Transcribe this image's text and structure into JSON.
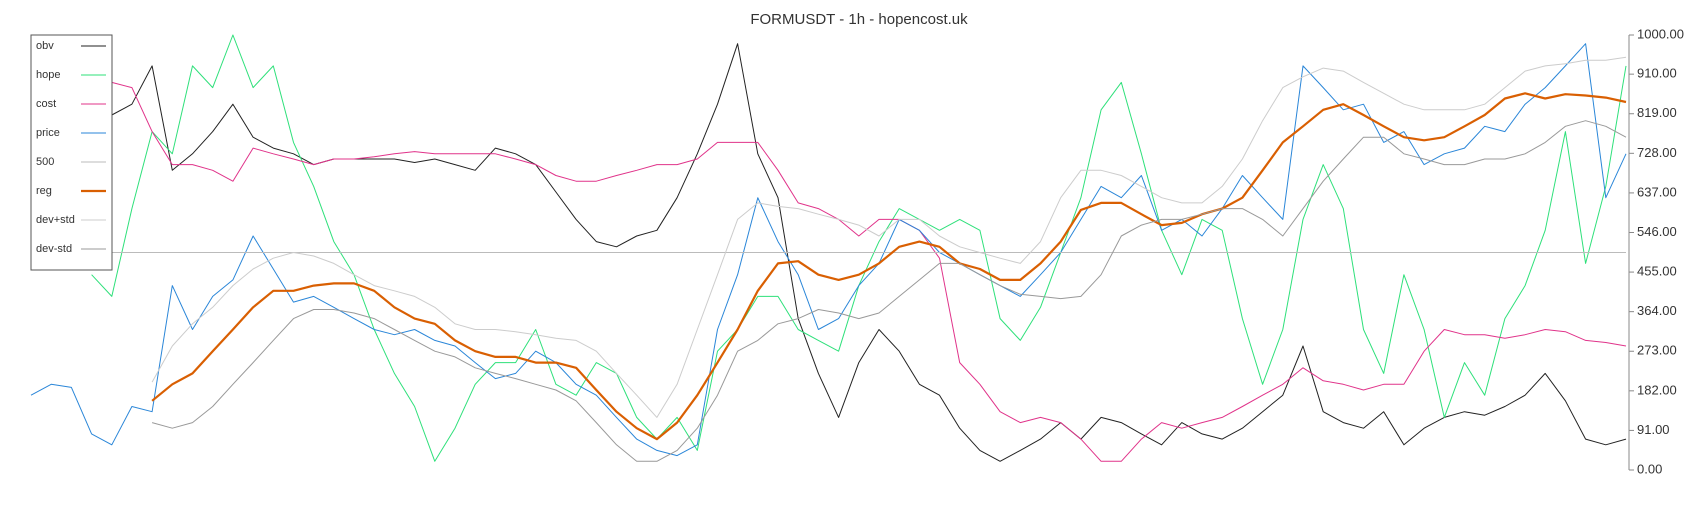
{
  "chart_data": {
    "type": "line",
    "title": "FORMUSDT - 1h - hopencost.uk",
    "categories": [
      null,
      null,
      null,
      null,
      null,
      null,
      null,
      null,
      null,
      null,
      null,
      null,
      null,
      null,
      null,
      null,
      null,
      null,
      null,
      null,
      null,
      null,
      null,
      null,
      null,
      null,
      null,
      null,
      null,
      null,
      null,
      null,
      null,
      null,
      null,
      null,
      null,
      null,
      null,
      null,
      null,
      null,
      null,
      null,
      null,
      null,
      null,
      null,
      null,
      null,
      null,
      null,
      null,
      null,
      null,
      null,
      null,
      null,
      null,
      null,
      null,
      null,
      null,
      null,
      null,
      null,
      null,
      null,
      null,
      null,
      null,
      null,
      null,
      null,
      null,
      null,
      null,
      null,
      null,
      null
    ],
    "ylim": [
      0,
      1000
    ],
    "yticks": [
      {
        "value": 0,
        "label": "0.00"
      },
      {
        "value": 91,
        "label": "91.00"
      },
      {
        "value": 182,
        "label": "182.00"
      },
      {
        "value": 273,
        "label": "273.00"
      },
      {
        "value": 364,
        "label": "364.00"
      },
      {
        "value": 455,
        "label": "455.00"
      },
      {
        "value": 546,
        "label": "546.00"
      },
      {
        "value": 637,
        "label": "637.00"
      },
      {
        "value": 728,
        "label": "728.00"
      },
      {
        "value": 819,
        "label": "819.00"
      },
      {
        "value": 910,
        "label": "910.00"
      },
      {
        "value": 1000,
        "label": "1000.00"
      }
    ],
    "grid": false,
    "legend": "upper left",
    "series": [
      {
        "name": "obv",
        "color": "#222222",
        "line_width": 1,
        "values": [
          null,
          null,
          null,
          null,
          816,
          841,
          929,
          689,
          727,
          778,
          841,
          765,
          740,
          727,
          702,
          715,
          715,
          715,
          715,
          707,
          715,
          702,
          689,
          740,
          727,
          702,
          639,
          576,
          525,
          513,
          538,
          551,
          626,
          727,
          841,
          980,
          727,
          626,
          348,
          222,
          121,
          247,
          323,
          273,
          197,
          172,
          96,
          45,
          20,
          45,
          71,
          109,
          71,
          121,
          109,
          83,
          58,
          109,
          83,
          71,
          96,
          134,
          172,
          285,
          134,
          109,
          96,
          134,
          58,
          96,
          121,
          134,
          126,
          146,
          172,
          222,
          159,
          71,
          58,
          71
        ]
      },
      {
        "name": "hope",
        "color": "#2ee07a",
        "line_width": 1,
        "values": [
          null,
          null,
          null,
          449,
          399,
          601,
          778,
          727,
          929,
          879,
          1000,
          879,
          929,
          753,
          652,
          525,
          449,
          323,
          222,
          146,
          20,
          96,
          197,
          247,
          247,
          323,
          197,
          172,
          247,
          222,
          121,
          71,
          121,
          45,
          273,
          323,
          399,
          399,
          323,
          298,
          273,
          424,
          525,
          601,
          576,
          551,
          576,
          551,
          348,
          298,
          374,
          500,
          626,
          828,
          891,
          727,
          551,
          449,
          576,
          551,
          348,
          197,
          323,
          576,
          702,
          601,
          323,
          222,
          449,
          323,
          121,
          247,
          172,
          348,
          424,
          551,
          778,
          475,
          652,
          929
        ]
      },
      {
        "name": "cost",
        "color": "#e0338a",
        "line_width": 1,
        "values": [
          null,
          null,
          null,
          null,
          891,
          879,
          778,
          702,
          702,
          689,
          664,
          740,
          727,
          715,
          702,
          715,
          715,
          720,
          727,
          732,
          727,
          727,
          727,
          727,
          715,
          702,
          677,
          664,
          664,
          677,
          689,
          702,
          702,
          715,
          753,
          753,
          753,
          689,
          614,
          601,
          576,
          538,
          576,
          576,
          551,
          487,
          247,
          197,
          134,
          109,
          121,
          109,
          71,
          20,
          20,
          71,
          109,
          96,
          109,
          121,
          146,
          172,
          197,
          235,
          205,
          197,
          184,
          197,
          197,
          273,
          323,
          311,
          311,
          303,
          311,
          323,
          318,
          298,
          293,
          285
        ]
      },
      {
        "name": "price",
        "color": "#2a86d8",
        "line_width": 1,
        "values": [
          172,
          197,
          190,
          83,
          58,
          146,
          134,
          424,
          323,
          399,
          437,
          538,
          462,
          386,
          399,
          374,
          348,
          323,
          311,
          323,
          298,
          285,
          247,
          210,
          222,
          273,
          247,
          197,
          172,
          121,
          71,
          45,
          33,
          58,
          323,
          449,
          626,
          525,
          449,
          323,
          348,
          424,
          475,
          576,
          551,
          500,
          475,
          449,
          424,
          399,
          449,
          500,
          576,
          652,
          626,
          677,
          551,
          576,
          538,
          601,
          677,
          626,
          576,
          929,
          879,
          828,
          841,
          753,
          778,
          702,
          727,
          740,
          790,
          778,
          841,
          879,
          929,
          980,
          626,
          727
        ]
      },
      {
        "name": "500",
        "color": "#bbbbbb",
        "line_width": 1,
        "values": [
          500,
          500,
          500,
          500,
          500,
          500,
          500,
          500,
          500,
          500,
          500,
          500,
          500,
          500,
          500,
          500,
          500,
          500,
          500,
          500,
          500,
          500,
          500,
          500,
          500,
          500,
          500,
          500,
          500,
          500,
          500,
          500,
          500,
          500,
          500,
          500,
          500,
          500,
          500,
          500,
          500,
          500,
          500,
          500,
          500,
          500,
          500,
          500,
          500,
          500,
          500,
          500,
          500,
          500,
          500,
          500,
          500,
          500,
          500,
          500,
          500,
          500,
          500,
          500,
          500,
          500,
          500,
          500,
          500,
          500,
          500,
          500,
          500,
          500,
          500,
          500,
          500,
          500,
          500,
          500
        ]
      },
      {
        "name": "reg",
        "color": "#d95f02",
        "line_width": 2.2,
        "values": [
          null,
          null,
          null,
          null,
          null,
          null,
          159,
          197,
          222,
          273,
          323,
          374,
          412,
          412,
          424,
          429,
          429,
          412,
          374,
          348,
          336,
          298,
          273,
          260,
          260,
          247,
          247,
          235,
          184,
          134,
          96,
          71,
          109,
          172,
          247,
          323,
          412,
          475,
          480,
          449,
          437,
          449,
          475,
          513,
          525,
          513,
          475,
          462,
          437,
          437,
          475,
          525,
          598,
          614,
          614,
          588,
          563,
          568,
          588,
          601,
          626,
          689,
          753,
          790,
          828,
          841,
          816,
          790,
          765,
          758,
          765,
          790,
          816,
          854,
          866,
          854,
          864,
          861,
          856,
          846
        ]
      },
      {
        "name": "dev+std",
        "color": "#cccccc",
        "line_width": 1,
        "values": [
          null,
          null,
          null,
          null,
          null,
          null,
          202,
          285,
          336,
          374,
          424,
          462,
          487,
          500,
          492,
          475,
          449,
          424,
          412,
          399,
          374,
          336,
          323,
          323,
          318,
          311,
          303,
          298,
          273,
          222,
          172,
          121,
          197,
          323,
          449,
          576,
          614,
          606,
          601,
          588,
          576,
          563,
          538,
          576,
          576,
          538,
          513,
          500,
          487,
          475,
          525,
          626,
          689,
          689,
          677,
          652,
          626,
          614,
          614,
          652,
          715,
          803,
          879,
          904,
          924,
          917,
          891,
          866,
          841,
          828,
          828,
          828,
          841,
          879,
          917,
          929,
          934,
          942,
          942,
          949
        ]
      },
      {
        "name": "dev-std",
        "color": "#999999",
        "line_width": 1,
        "values": [
          null,
          null,
          null,
          null,
          null,
          null,
          109,
          96,
          109,
          146,
          197,
          247,
          298,
          348,
          369,
          369,
          361,
          348,
          323,
          298,
          273,
          260,
          235,
          222,
          210,
          197,
          184,
          159,
          109,
          58,
          20,
          20,
          45,
          96,
          172,
          273,
          298,
          336,
          348,
          369,
          361,
          348,
          361,
          399,
          437,
          475,
          475,
          449,
          424,
          404,
          399,
          394,
          399,
          449,
          538,
          563,
          576,
          576,
          588,
          601,
          601,
          576,
          538,
          601,
          664,
          715,
          765,
          765,
          727,
          715,
          702,
          702,
          715,
          715,
          727,
          753,
          790,
          803,
          790,
          765
        ]
      }
    ]
  }
}
